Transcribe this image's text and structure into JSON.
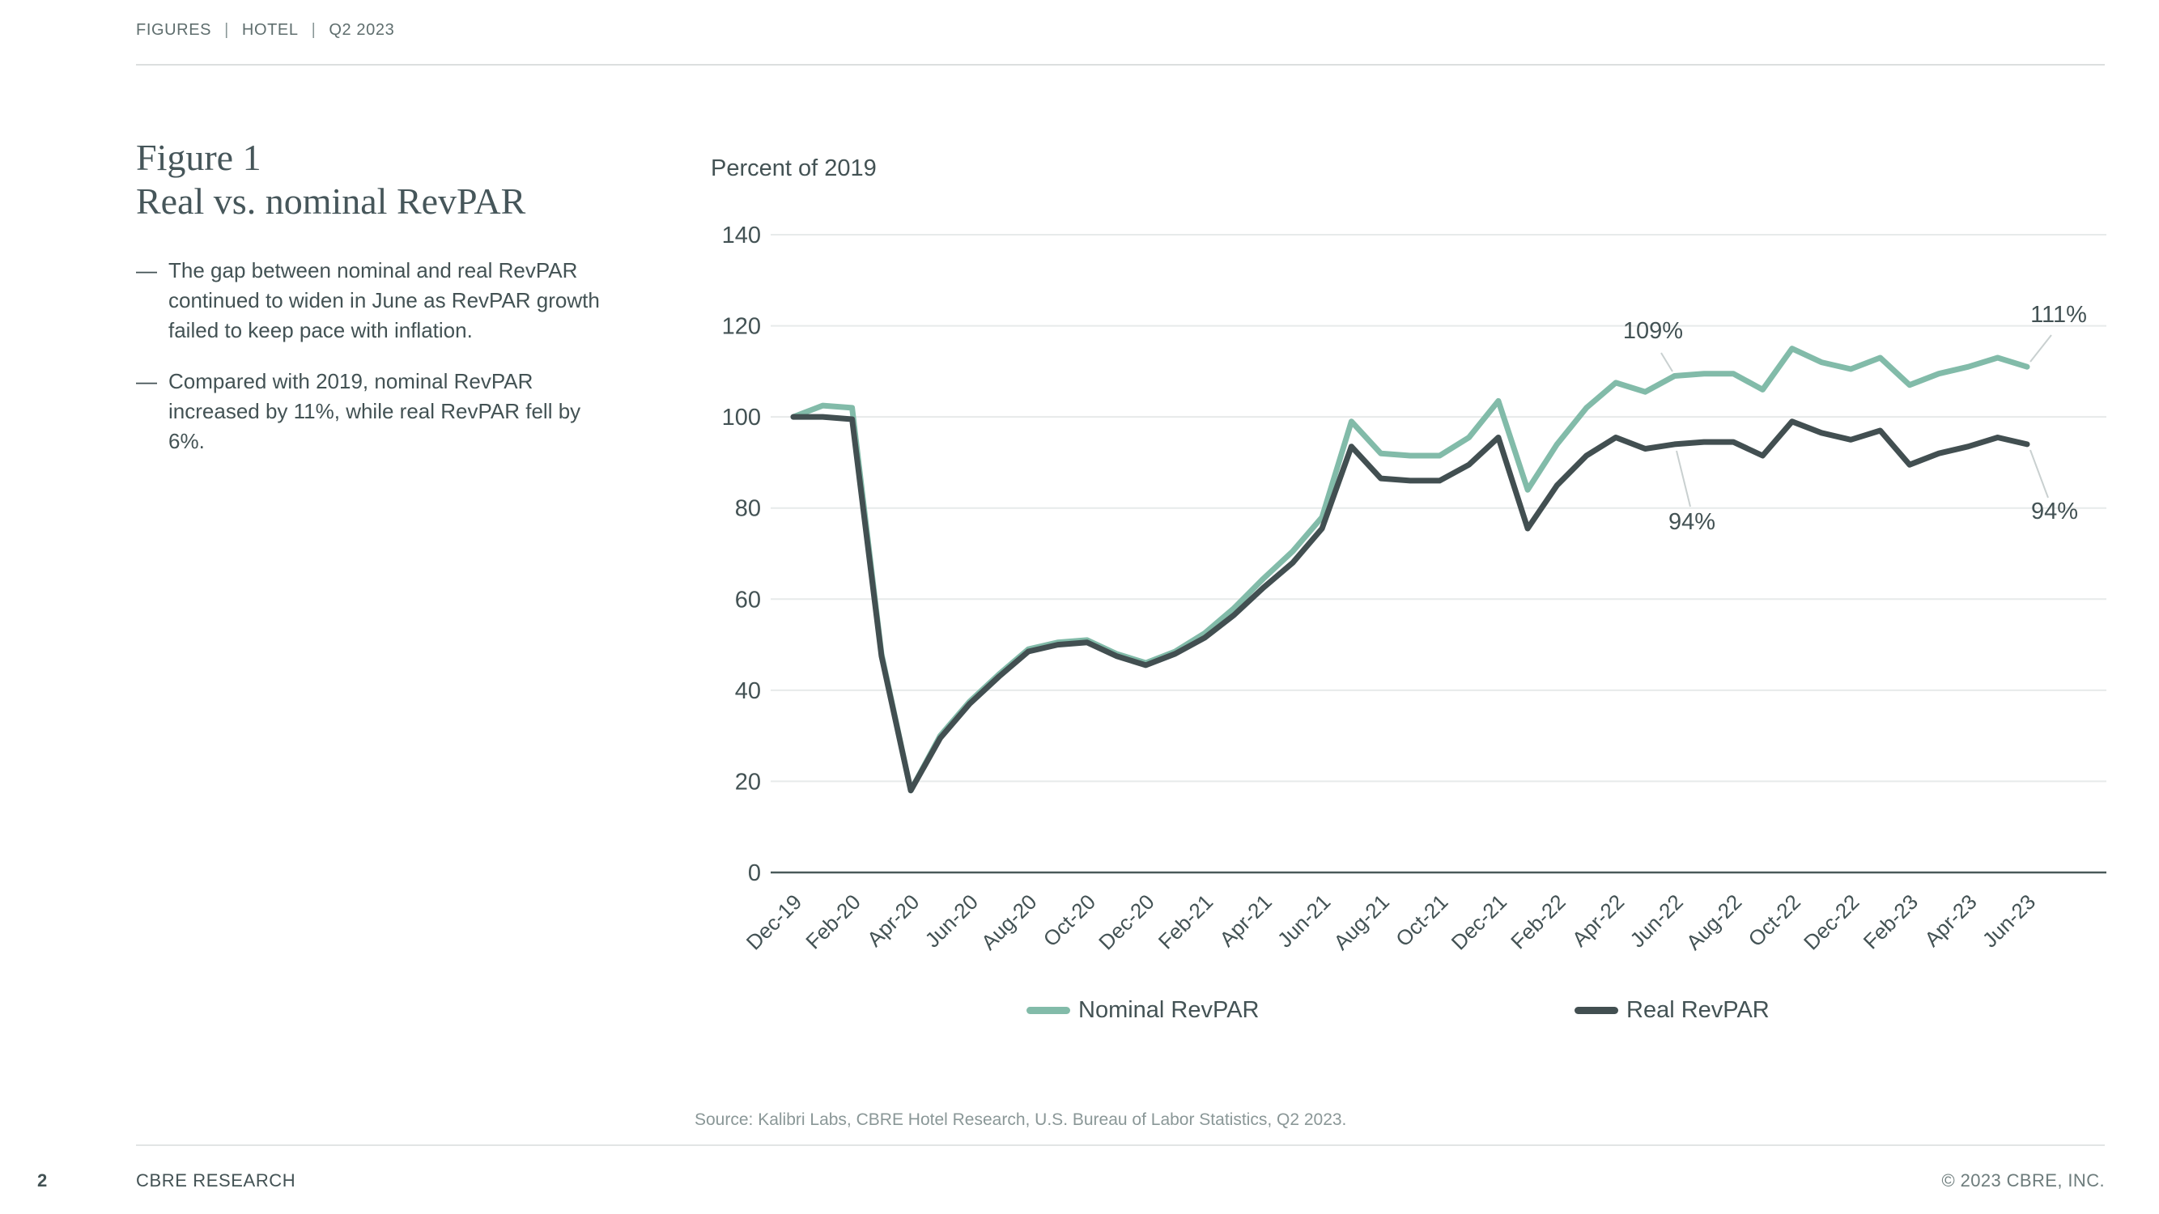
{
  "breadcrumb": {
    "items": [
      "FIGURES",
      "HOTEL",
      "Q2 2023"
    ],
    "separator": "|"
  },
  "figure": {
    "label": "Figure 1",
    "title": "Real vs. nominal RevPAR",
    "bullet_dash": "—",
    "bullets": [
      "The gap between nominal and real RevPAR continued to widen in June as RevPAR growth failed to keep pace with inflation.",
      "Compared with 2019, nominal RevPAR increased by 11%, while real RevPAR fell by 6%."
    ]
  },
  "chart_data": {
    "type": "line",
    "title": "Percent of 2019",
    "xlabel": "",
    "ylabel": "Percent of 2019",
    "ylim": [
      0,
      140
    ],
    "yticks": [
      0,
      20,
      40,
      60,
      80,
      100,
      120,
      140
    ],
    "xtick_every": 2,
    "grid": true,
    "legend_position": "bottom",
    "colors": {
      "grid": "#e7eaea",
      "axis": "#4a5a5a",
      "leader": "#c9d0d0",
      "text": "#435254"
    },
    "categories": [
      "Dec-19",
      "Jan-20",
      "Feb-20",
      "Mar-20",
      "Apr-20",
      "May-20",
      "Jun-20",
      "Jul-20",
      "Aug-20",
      "Sep-20",
      "Oct-20",
      "Nov-20",
      "Dec-20",
      "Jan-21",
      "Feb-21",
      "Mar-21",
      "Apr-21",
      "May-21",
      "Jun-21",
      "Jul-21",
      "Aug-21",
      "Sep-21",
      "Oct-21",
      "Nov-21",
      "Dec-21",
      "Jan-22",
      "Feb-22",
      "Mar-22",
      "Apr-22",
      "May-22",
      "Jun-22",
      "Jul-22",
      "Aug-22",
      "Sep-22",
      "Oct-22",
      "Nov-22",
      "Dec-22",
      "Jan-23",
      "Feb-23",
      "Mar-23",
      "Apr-23",
      "May-23",
      "Jun-23"
    ],
    "series": [
      {
        "name": "Nominal RevPAR",
        "color": "#82bba9",
        "values": [
          100,
          102.5,
          102,
          48,
          18,
          30,
          37.5,
          43.5,
          49,
          50.5,
          51,
          48,
          46,
          48.5,
          52.5,
          58,
          64.5,
          70.5,
          78,
          99,
          92,
          91.5,
          91.5,
          95.5,
          103.5,
          84,
          94,
          102,
          107.5,
          105.5,
          109,
          109.5,
          109.5,
          106,
          115,
          112,
          110.5,
          113,
          107,
          109.5,
          111,
          113,
          111
        ]
      },
      {
        "name": "Real RevPAR",
        "color": "#424f51",
        "values": [
          100,
          100,
          99.5,
          47.5,
          18,
          29.5,
          37,
          43,
          48.5,
          50,
          50.5,
          47.5,
          45.5,
          48,
          51.5,
          56.5,
          62.5,
          68,
          75.5,
          93.5,
          86.5,
          86,
          86,
          89.5,
          95.5,
          75.5,
          85,
          91.5,
          95.5,
          93,
          94,
          94.5,
          94.5,
          91.5,
          99,
          96.5,
          95,
          97,
          89.5,
          92,
          93.5,
          95.5,
          94
        ]
      }
    ],
    "annotations": [
      {
        "text": "109%",
        "series": "Nominal RevPAR",
        "category": "Jun-22",
        "x": 2042,
        "y": 418,
        "leader": [
          2052,
          436,
          2066,
          459
        ]
      },
      {
        "text": "94%",
        "series": "Real RevPAR",
        "category": "Jun-22",
        "x": 2090,
        "y": 654,
        "leader": [
          2088,
          626,
          2071,
          557
        ]
      },
      {
        "text": "111%",
        "series": "Nominal RevPAR",
        "category": "Jun-23",
        "x": 2543,
        "y": 398,
        "leader": [
          2534,
          414,
          2508,
          447
        ]
      },
      {
        "text": "94%",
        "series": "Real RevPAR",
        "category": "Jun-23",
        "x": 2538,
        "y": 641,
        "leader": [
          2530,
          615,
          2508,
          556
        ]
      }
    ]
  },
  "source": "Source: Kalibri Labs, CBRE Hotel Research, U.S. Bureau of Labor Statistics, Q2 2023.",
  "footer": {
    "page_number": "2",
    "left": "CBRE RESEARCH",
    "right": "© 2023 CBRE, INC."
  }
}
